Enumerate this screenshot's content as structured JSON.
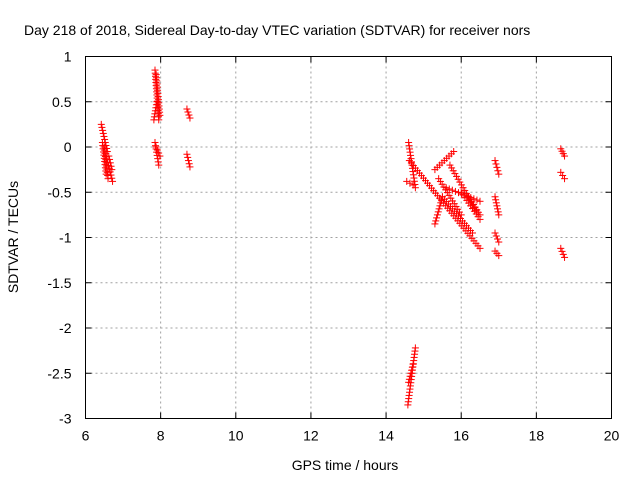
{
  "chart_data": {
    "type": "scatter",
    "title": "Day 218 of 2018, Sidereal Day-to-day VTEC variation (SDTVAR) for receiver nors",
    "xlabel": "GPS time / hours",
    "ylabel": "SDTVAR / TECUs",
    "xlim": [
      6,
      20
    ],
    "ylim": [
      -3,
      1
    ],
    "x_ticks": [
      6,
      8,
      10,
      12,
      14,
      16,
      18,
      20
    ],
    "y_ticks": [
      1,
      0.5,
      0,
      -0.5,
      -1,
      -1.5,
      -2,
      -2.5,
      -3
    ],
    "x_tick_labels": [
      "6",
      "8",
      "10",
      "12",
      "14",
      "16",
      "18",
      "20"
    ],
    "y_tick_labels": [
      "1",
      "0.5",
      "0",
      "-0.5",
      "-1",
      "-1.5",
      "-2",
      "-2.5",
      "-3"
    ],
    "grid": true,
    "marker": "+",
    "color": "#ff0000",
    "series": [
      {
        "name": "SDTVAR",
        "segments": [
          {
            "x": [
              6.42,
              6.58
            ],
            "y": [
              0.25,
              -0.05
            ]
          },
          {
            "x": [
              6.45,
              6.55
            ],
            "y": [
              0.05,
              -0.3
            ]
          },
          {
            "x": [
              6.5,
              6.6
            ],
            "y": [
              0.0,
              -0.35
            ]
          },
          {
            "x": [
              6.55,
              6.72
            ],
            "y": [
              -0.1,
              -0.38
            ]
          },
          {
            "x": [
              6.62,
              6.7
            ],
            "y": [
              -0.1,
              -0.25
            ]
          },
          {
            "x": [
              7.85,
              7.95
            ],
            "y": [
              0.85,
              0.3
            ]
          },
          {
            "x": [
              7.88,
              7.98
            ],
            "y": [
              0.8,
              0.35
            ]
          },
          {
            "x": [
              7.82,
              7.9
            ],
            "y": [
              0.3,
              0.5
            ]
          },
          {
            "x": [
              7.85,
              7.95
            ],
            "y": [
              0.05,
              -0.2
            ]
          },
          {
            "x": [
              7.88,
              7.98
            ],
            "y": [
              0.0,
              -0.1
            ]
          },
          {
            "x": [
              8.7,
              8.78
            ],
            "y": [
              0.42,
              0.32
            ]
          },
          {
            "x": [
              8.7,
              8.78
            ],
            "y": [
              -0.08,
              -0.22
            ]
          },
          {
            "x": [
              14.58,
              14.78
            ],
            "y": [
              -2.85,
              -2.22
            ]
          },
          {
            "x": [
              14.6,
              14.72
            ],
            "y": [
              -2.6,
              -2.4
            ]
          },
          {
            "x": [
              14.6,
              14.78
            ],
            "y": [
              0.05,
              -0.45
            ]
          },
          {
            "x": [
              14.55,
              14.72
            ],
            "y": [
              -0.38,
              -0.42
            ]
          },
          {
            "x": [
              14.62,
              16.5
            ],
            "y": [
              -0.15,
              -1.12
            ]
          },
          {
            "x": [
              15.3,
              15.8
            ],
            "y": [
              -0.25,
              -0.05
            ]
          },
          {
            "x": [
              15.3,
              15.5
            ],
            "y": [
              -0.85,
              -0.55
            ]
          },
          {
            "x": [
              15.4,
              16.0
            ],
            "y": [
              -0.35,
              -0.75
            ]
          },
          {
            "x": [
              15.5,
              16.3
            ],
            "y": [
              -0.55,
              -0.95
            ]
          },
          {
            "x": [
              15.6,
              16.5
            ],
            "y": [
              -0.45,
              -0.6
            ]
          },
          {
            "x": [
              15.7,
              16.4
            ],
            "y": [
              -0.2,
              -0.7
            ]
          },
          {
            "x": [
              16.0,
              16.5
            ],
            "y": [
              -0.5,
              -0.8
            ]
          },
          {
            "x": [
              16.2,
              16.5
            ],
            "y": [
              -0.55,
              -0.75
            ]
          },
          {
            "x": [
              16.9,
              17.0
            ],
            "y": [
              -0.15,
              -0.3
            ]
          },
          {
            "x": [
              16.9,
              17.0
            ],
            "y": [
              -0.55,
              -0.75
            ]
          },
          {
            "x": [
              16.9,
              17.0
            ],
            "y": [
              -0.95,
              -1.05
            ]
          },
          {
            "x": [
              16.9,
              17.0
            ],
            "y": [
              -1.15,
              -1.2
            ]
          },
          {
            "x": [
              18.65,
              18.75
            ],
            "y": [
              -0.02,
              -0.1
            ]
          },
          {
            "x": [
              18.65,
              18.75
            ],
            "y": [
              -0.28,
              -0.35
            ]
          },
          {
            "x": [
              18.65,
              18.75
            ],
            "y": [
              -1.12,
              -1.22
            ]
          }
        ]
      }
    ]
  }
}
